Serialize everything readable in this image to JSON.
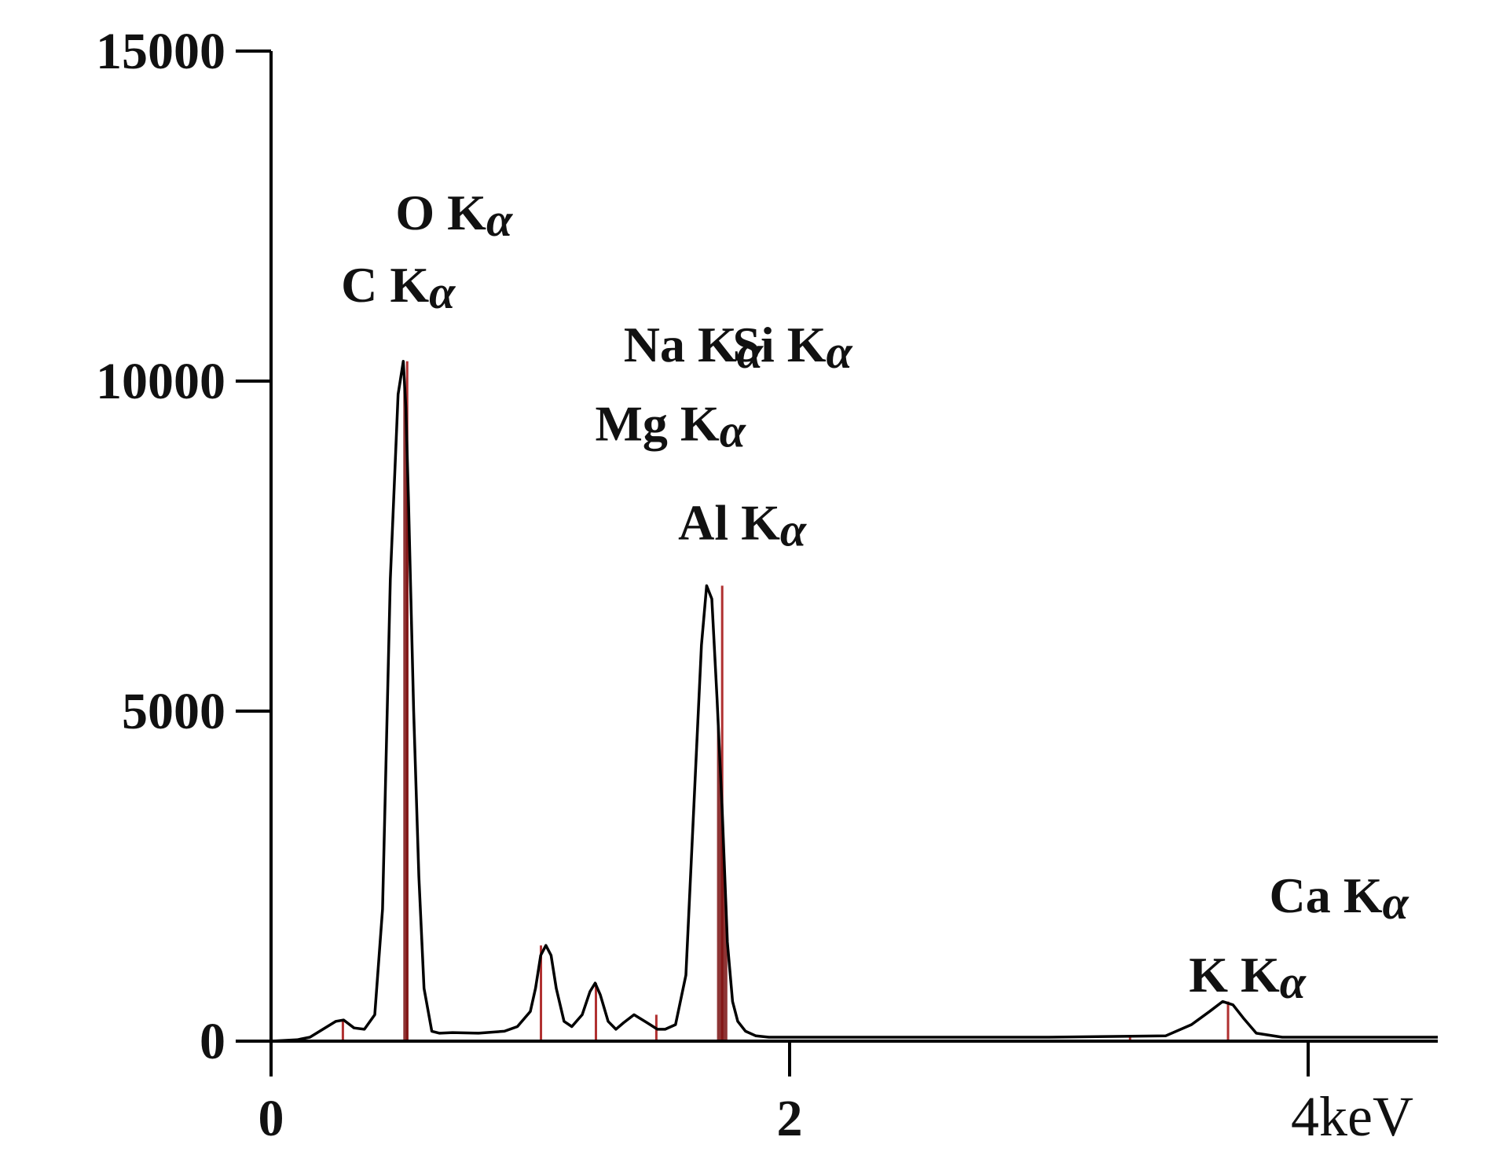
{
  "chart_data": {
    "type": "line",
    "title": "",
    "xlabel": "",
    "ylabel": "",
    "x_unit": "keV",
    "xlim": [
      0,
      4.5
    ],
    "ylim": [
      0,
      15000
    ],
    "grid": false,
    "y_ticks": [
      {
        "value": 0,
        "label": "0"
      },
      {
        "value": 5000,
        "label": "5000"
      },
      {
        "value": 10000,
        "label": "10000"
      },
      {
        "value": 15000,
        "label": "15000"
      }
    ],
    "x_ticks": [
      {
        "value": 0,
        "label": "0"
      },
      {
        "value": 2,
        "label": "2"
      },
      {
        "value": 4,
        "label": "4keV"
      }
    ],
    "series": [
      {
        "color": "#000000",
        "x": [
          0.0,
          0.1,
          0.15,
          0.2,
          0.25,
          0.28,
          0.32,
          0.36,
          0.4,
          0.43,
          0.46,
          0.49,
          0.51,
          0.52,
          0.53,
          0.55,
          0.57,
          0.59,
          0.62,
          0.65,
          0.7,
          0.8,
          0.9,
          0.95,
          1.0,
          1.02,
          1.04,
          1.06,
          1.08,
          1.1,
          1.13,
          1.16,
          1.2,
          1.23,
          1.25,
          1.27,
          1.3,
          1.33,
          1.36,
          1.4,
          1.45,
          1.49,
          1.52,
          1.56,
          1.6,
          1.63,
          1.66,
          1.68,
          1.7,
          1.72,
          1.74,
          1.76,
          1.78,
          1.8,
          1.83,
          1.87,
          1.92,
          2.0,
          2.5,
          3.0,
          3.45,
          3.55,
          3.62,
          3.67,
          3.71,
          3.75,
          3.8,
          3.9,
          4.2,
          4.5
        ],
        "y": [
          0,
          20,
          60,
          180,
          300,
          320,
          200,
          180,
          400,
          2000,
          7000,
          9800,
          10300,
          9600,
          8200,
          5000,
          2500,
          800,
          150,
          120,
          130,
          120,
          150,
          220,
          450,
          800,
          1300,
          1450,
          1300,
          800,
          300,
          220,
          400,
          750,
          880,
          700,
          300,
          180,
          280,
          400,
          280,
          180,
          180,
          250,
          1000,
          3500,
          6000,
          6900,
          6700,
          5200,
          3500,
          1500,
          600,
          300,
          150,
          80,
          60,
          60,
          60,
          60,
          80,
          250,
          450,
          600,
          550,
          350,
          120,
          60,
          60,
          60
        ]
      }
    ],
    "peak_markers": [
      {
        "element": "C",
        "energy": 0.277,
        "height": 300
      },
      {
        "element": "O",
        "energy": 0.525,
        "height": 10300
      },
      {
        "element": "Na",
        "energy": 1.041,
        "height": 1450
      },
      {
        "element": "Mg",
        "energy": 1.253,
        "height": 880
      },
      {
        "element": "Al",
        "energy": 1.486,
        "height": 400
      },
      {
        "element": "Si",
        "energy": 1.74,
        "height": 6900
      },
      {
        "element": "K",
        "energy": 3.313,
        "height": 60
      },
      {
        "element": "Ca",
        "energy": 3.691,
        "height": 600
      }
    ],
    "annotations": [
      {
        "text": "O K",
        "alpha": "α",
        "x": 0.48,
        "y": 12300
      },
      {
        "text": "C K",
        "alpha": "α",
        "x": 0.27,
        "y": 11200
      },
      {
        "text": "Na K",
        "alpha": "α",
        "x": 1.36,
        "y": 10300
      },
      {
        "text": "Si K",
        "alpha": "α",
        "x": 1.78,
        "y": 10300
      },
      {
        "text": "Mg K",
        "alpha": "α",
        "x": 1.25,
        "y": 9100
      },
      {
        "text": "Al K",
        "alpha": "α",
        "x": 1.57,
        "y": 7600
      },
      {
        "text": "Ca K",
        "alpha": "α",
        "x": 3.85,
        "y": 1950
      },
      {
        "text": "K K",
        "alpha": "α",
        "x": 3.54,
        "y": 750
      }
    ],
    "colors": {
      "axis": "#000000",
      "line": "#000000",
      "peak_fill": "#7a1010",
      "marker_line": "#b03030"
    }
  }
}
